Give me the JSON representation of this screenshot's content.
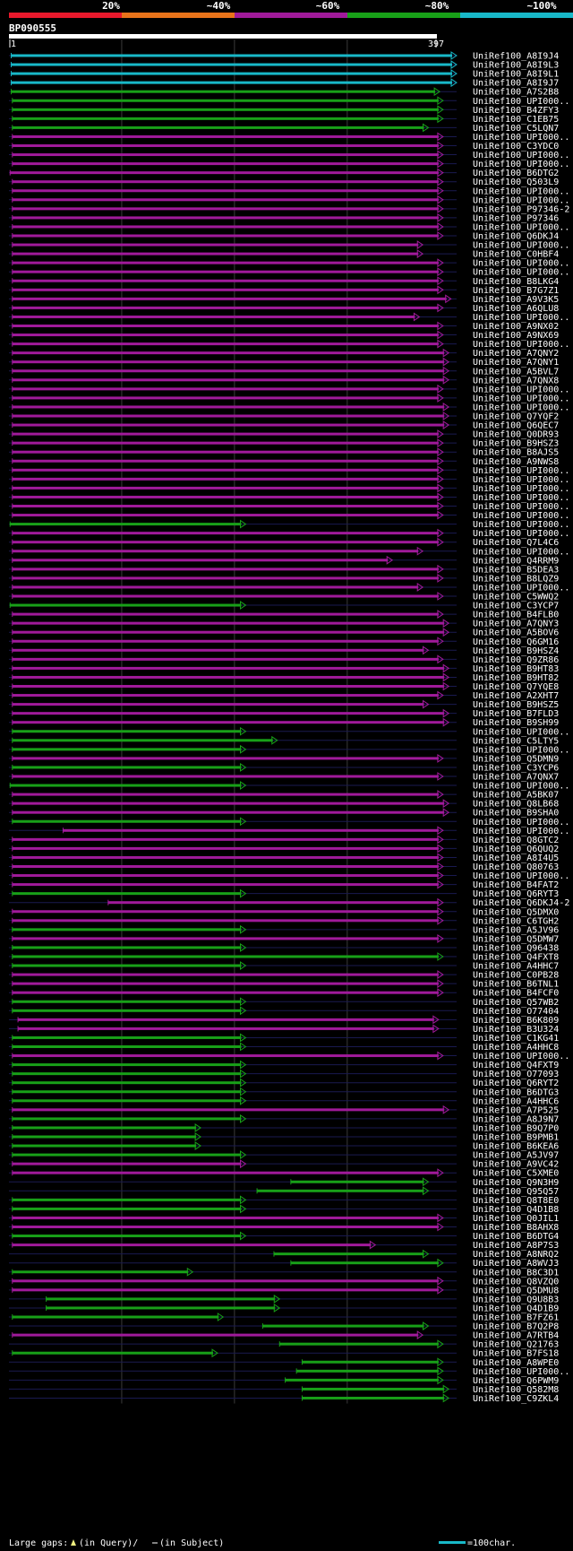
{
  "chart_data": {
    "type": "alignment-overview",
    "query": {
      "name": "BP090555",
      "start": 1,
      "end": 397
    },
    "color_scale": [
      {
        "label": "20%",
        "color": "#e8192c"
      },
      {
        "label": "~40%",
        "color": "#e8731a"
      },
      {
        "label": "~60%",
        "color": "#a01a9a"
      },
      {
        "label": "~80%",
        "color": "#18a018"
      },
      {
        "label": "~100%",
        "color": "#18b8c8"
      }
    ],
    "hits_shown": 150,
    "hits": [
      {
        "name": "UniRef100_A8I9J4",
        "start": 2,
        "end": 397,
        "color": "#18b8c8"
      },
      {
        "name": "UniRef100_A8I9L3",
        "start": 2,
        "end": 397,
        "color": "#18b8c8"
      },
      {
        "name": "UniRef100_A8I9L1",
        "start": 2,
        "end": 397,
        "color": "#18b8c8"
      },
      {
        "name": "UniRef100_A8I9J7",
        "start": 2,
        "end": 397,
        "color": "#18b8c8"
      },
      {
        "name": "UniRef100_A7S2B8",
        "start": 2,
        "end": 382,
        "color": "#18a018"
      },
      {
        "name": "UniRef100_UPI000..",
        "start": 3,
        "end": 385,
        "color": "#18a018"
      },
      {
        "name": "UniRef100_B4ZFY3",
        "start": 3,
        "end": 385,
        "color": "#18a018"
      },
      {
        "name": "UniRef100_C1EB75",
        "start": 3,
        "end": 385,
        "color": "#18a018"
      },
      {
        "name": "UniRef100_C5LQN7",
        "start": 3,
        "end": 372,
        "color": "#18a018"
      },
      {
        "name": "UniRef100_UPI000..",
        "start": 3,
        "end": 385,
        "color": "#a01a9a"
      },
      {
        "name": "UniRef100_C3YDC0",
        "start": 3,
        "end": 385,
        "color": "#a01a9a"
      },
      {
        "name": "UniRef100_UPI000..",
        "start": 3,
        "end": 385,
        "color": "#a01a9a"
      },
      {
        "name": "UniRef100_UPI000..",
        "start": 3,
        "end": 385,
        "color": "#a01a9a"
      },
      {
        "name": "UniRef100_B6DTG2",
        "start": 1,
        "end": 385,
        "color": "#a01a9a"
      },
      {
        "name": "UniRef100_Q503L9",
        "start": 3,
        "end": 385,
        "color": "#a01a9a"
      },
      {
        "name": "UniRef100_UPI000..",
        "start": 3,
        "end": 385,
        "color": "#a01a9a"
      },
      {
        "name": "UniRef100_UPI000..",
        "start": 3,
        "end": 385,
        "color": "#a01a9a"
      },
      {
        "name": "UniRef100_P97346-2",
        "start": 3,
        "end": 385,
        "color": "#a01a9a"
      },
      {
        "name": "UniRef100_P97346",
        "start": 3,
        "end": 385,
        "color": "#a01a9a"
      },
      {
        "name": "UniRef100_UPI000..",
        "start": 3,
        "end": 385,
        "color": "#a01a9a"
      },
      {
        "name": "UniRef100_Q6DKJ4",
        "start": 3,
        "end": 385,
        "color": "#a01a9a"
      },
      {
        "name": "UniRef100_UPI000..",
        "start": 3,
        "end": 367,
        "color": "#a01a9a"
      },
      {
        "name": "UniRef100_C0HBF4",
        "start": 3,
        "end": 367,
        "color": "#a01a9a"
      },
      {
        "name": "UniRef100_UPI000..",
        "start": 3,
        "end": 385,
        "color": "#a01a9a"
      },
      {
        "name": "UniRef100_UPI000..",
        "start": 3,
        "end": 385,
        "color": "#a01a9a"
      },
      {
        "name": "UniRef100_B8LKG4",
        "start": 3,
        "end": 385,
        "color": "#a01a9a"
      },
      {
        "name": "UniRef100_B7G7Z1",
        "start": 3,
        "end": 385,
        "color": "#a01a9a"
      },
      {
        "name": "UniRef100_A9V3K5",
        "start": 3,
        "end": 392,
        "color": "#a01a9a"
      },
      {
        "name": "UniRef100_A6QLU8",
        "start": 3,
        "end": 385,
        "color": "#a01a9a"
      },
      {
        "name": "UniRef100_UPI000..",
        "start": 3,
        "end": 364,
        "color": "#a01a9a"
      },
      {
        "name": "UniRef100_A9NX02",
        "start": 3,
        "end": 385,
        "color": "#a01a9a"
      },
      {
        "name": "UniRef100_A9NX69",
        "start": 3,
        "end": 385,
        "color": "#a01a9a"
      },
      {
        "name": "UniRef100_UPI000..",
        "start": 3,
        "end": 385,
        "color": "#a01a9a"
      },
      {
        "name": "UniRef100_A7QNY2",
        "start": 3,
        "end": 390,
        "color": "#a01a9a"
      },
      {
        "name": "UniRef100_A7QNY1",
        "start": 3,
        "end": 390,
        "color": "#a01a9a"
      },
      {
        "name": "UniRef100_A5BVL7",
        "start": 3,
        "end": 390,
        "color": "#a01a9a"
      },
      {
        "name": "UniRef100_A7QNX8",
        "start": 3,
        "end": 390,
        "color": "#a01a9a"
      },
      {
        "name": "UniRef100_UPI000..",
        "start": 3,
        "end": 385,
        "color": "#a01a9a"
      },
      {
        "name": "UniRef100_UPI000..",
        "start": 3,
        "end": 385,
        "color": "#a01a9a"
      },
      {
        "name": "UniRef100_UPI000..",
        "start": 3,
        "end": 390,
        "color": "#a01a9a"
      },
      {
        "name": "UniRef100_Q7YQF2",
        "start": 3,
        "end": 390,
        "color": "#a01a9a"
      },
      {
        "name": "UniRef100_Q6QEC7",
        "start": 3,
        "end": 390,
        "color": "#a01a9a"
      },
      {
        "name": "UniRef100_Q0DR93",
        "start": 3,
        "end": 385,
        "color": "#a01a9a"
      },
      {
        "name": "UniRef100_B9HSZ3",
        "start": 3,
        "end": 385,
        "color": "#a01a9a"
      },
      {
        "name": "UniRef100_B8AJS5",
        "start": 3,
        "end": 385,
        "color": "#a01a9a"
      },
      {
        "name": "UniRef100_A9NWS8",
        "start": 3,
        "end": 385,
        "color": "#a01a9a"
      },
      {
        "name": "UniRef100_UPI000..",
        "start": 3,
        "end": 385,
        "color": "#a01a9a"
      },
      {
        "name": "UniRef100_UPI000..",
        "start": 3,
        "end": 385,
        "color": "#a01a9a"
      },
      {
        "name": "UniRef100_UPI000..",
        "start": 3,
        "end": 385,
        "color": "#a01a9a"
      },
      {
        "name": "UniRef100_UPI000..",
        "start": 3,
        "end": 385,
        "color": "#a01a9a"
      },
      {
        "name": "UniRef100_UPI000..",
        "start": 3,
        "end": 385,
        "color": "#a01a9a"
      },
      {
        "name": "UniRef100_UPI000..",
        "start": 3,
        "end": 385,
        "color": "#a01a9a"
      },
      {
        "name": "UniRef100_UPI000..",
        "start": 1,
        "end": 210,
        "color": "#18a018"
      },
      {
        "name": "UniRef100_UPI000..",
        "start": 3,
        "end": 385,
        "color": "#a01a9a"
      },
      {
        "name": "UniRef100_Q7L4C6",
        "start": 3,
        "end": 385,
        "color": "#a01a9a"
      },
      {
        "name": "UniRef100_UPI000..",
        "start": 3,
        "end": 367,
        "color": "#a01a9a"
      },
      {
        "name": "UniRef100_Q4RRM9",
        "start": 3,
        "end": 340,
        "color": "#a01a9a"
      },
      {
        "name": "UniRef100_B5DEA3",
        "start": 3,
        "end": 385,
        "color": "#a01a9a"
      },
      {
        "name": "UniRef100_B8LQZ9",
        "start": 3,
        "end": 385,
        "color": "#a01a9a"
      },
      {
        "name": "UniRef100_UPI000..",
        "start": 3,
        "end": 367,
        "color": "#a01a9a"
      },
      {
        "name": "UniRef100_C5WWQ2",
        "start": 3,
        "end": 385,
        "color": "#a01a9a"
      },
      {
        "name": "UniRef100_C3YCP7",
        "start": 1,
        "end": 210,
        "color": "#18a018"
      },
      {
        "name": "UniRef100_B4FLB0",
        "start": 3,
        "end": 385,
        "color": "#a01a9a"
      },
      {
        "name": "UniRef100_A7QNY3",
        "start": 3,
        "end": 390,
        "color": "#a01a9a"
      },
      {
        "name": "UniRef100_A5BOV6",
        "start": 3,
        "end": 390,
        "color": "#a01a9a"
      },
      {
        "name": "UniRef100_Q6GM16",
        "start": 3,
        "end": 385,
        "color": "#a01a9a"
      },
      {
        "name": "UniRef100_B9HSZ4",
        "start": 3,
        "end": 372,
        "color": "#a01a9a"
      },
      {
        "name": "UniRef100_Q9ZR86",
        "start": 3,
        "end": 385,
        "color": "#a01a9a"
      },
      {
        "name": "UniRef100_B9HT83",
        "start": 3,
        "end": 390,
        "color": "#a01a9a"
      },
      {
        "name": "UniRef100_B9HT82",
        "start": 3,
        "end": 390,
        "color": "#a01a9a"
      },
      {
        "name": "UniRef100_Q7YQE8",
        "start": 3,
        "end": 390,
        "color": "#a01a9a"
      },
      {
        "name": "UniRef100_A2XHT7",
        "start": 3,
        "end": 385,
        "color": "#a01a9a"
      },
      {
        "name": "UniRef100_B9HSZ5",
        "start": 3,
        "end": 372,
        "color": "#a01a9a"
      },
      {
        "name": "UniRef100_B7FLD3",
        "start": 3,
        "end": 390,
        "color": "#a01a9a"
      },
      {
        "name": "UniRef100_B9SH99",
        "start": 3,
        "end": 390,
        "color": "#a01a9a"
      },
      {
        "name": "UniRef100_UPI000..",
        "start": 3,
        "end": 210,
        "color": "#18a018"
      },
      {
        "name": "UniRef100_C5LTY5",
        "start": 3,
        "end": 238,
        "color": "#18a018"
      },
      {
        "name": "UniRef100_UPI000..",
        "start": 3,
        "end": 210,
        "color": "#18a018"
      },
      {
        "name": "UniRef100_Q5DMN9",
        "start": 3,
        "end": 385,
        "color": "#a01a9a"
      },
      {
        "name": "UniRef100_C3YCP6",
        "start": 3,
        "end": 210,
        "color": "#18a018"
      },
      {
        "name": "UniRef100_A7QNX7",
        "start": 3,
        "end": 385,
        "color": "#a01a9a"
      },
      {
        "name": "UniRef100_UPI000..",
        "start": 1,
        "end": 210,
        "color": "#18a018"
      },
      {
        "name": "UniRef100_A5BK07",
        "start": 3,
        "end": 385,
        "color": "#a01a9a"
      },
      {
        "name": "UniRef100_Q8LB68",
        "start": 3,
        "end": 390,
        "color": "#a01a9a"
      },
      {
        "name": "UniRef100_B9SHA0",
        "start": 3,
        "end": 390,
        "color": "#a01a9a"
      },
      {
        "name": "UniRef100_UPI000..",
        "start": 3,
        "end": 210,
        "color": "#18a018"
      },
      {
        "name": "UniRef100_UPI000..",
        "start": 48,
        "end": 385,
        "color": "#a01a9a"
      },
      {
        "name": "UniRef100_Q8GTC2",
        "start": 3,
        "end": 385,
        "color": "#a01a9a"
      },
      {
        "name": "UniRef100_Q6QUQ2",
        "start": 3,
        "end": 385,
        "color": "#a01a9a"
      },
      {
        "name": "UniRef100_A8I4U5",
        "start": 3,
        "end": 385,
        "color": "#a01a9a"
      },
      {
        "name": "UniRef100_Q80763",
        "start": 3,
        "end": 385,
        "color": "#a01a9a"
      },
      {
        "name": "UniRef100_UPI000..",
        "start": 3,
        "end": 385,
        "color": "#a01a9a"
      },
      {
        "name": "UniRef100_B4FAT2",
        "start": 3,
        "end": 385,
        "color": "#a01a9a"
      },
      {
        "name": "UniRef100_Q6RYT3",
        "start": 3,
        "end": 210,
        "color": "#18a018"
      },
      {
        "name": "UniRef100_Q6DKJ4-2",
        "start": 88,
        "end": 385,
        "color": "#a01a9a"
      },
      {
        "name": "UniRef100_Q5DMX0",
        "start": 3,
        "end": 385,
        "color": "#a01a9a"
      },
      {
        "name": "UniRef100_C6TGH2",
        "start": 3,
        "end": 385,
        "color": "#a01a9a"
      },
      {
        "name": "UniRef100_A5JV96",
        "start": 3,
        "end": 210,
        "color": "#18a018"
      },
      {
        "name": "UniRef100_Q5DMW7",
        "start": 3,
        "end": 385,
        "color": "#a01a9a"
      },
      {
        "name": "UniRef100_Q96438",
        "start": 3,
        "end": 210,
        "color": "#18a018"
      },
      {
        "name": "UniRef100_Q4FXT8",
        "start": 3,
        "end": 385,
        "color": "#18a018"
      },
      {
        "name": "UniRef100_A4HHC7",
        "start": 3,
        "end": 210,
        "color": "#18a018"
      },
      {
        "name": "UniRef100_C0PB28",
        "start": 3,
        "end": 385,
        "color": "#a01a9a"
      },
      {
        "name": "UniRef100_B6TNL1",
        "start": 3,
        "end": 385,
        "color": "#a01a9a"
      },
      {
        "name": "UniRef100_B4FCF0",
        "start": 3,
        "end": 385,
        "color": "#a01a9a"
      },
      {
        "name": "UniRef100_Q57WB2",
        "start": 3,
        "end": 210,
        "color": "#18a018"
      },
      {
        "name": "UniRef100_O77404",
        "start": 3,
        "end": 210,
        "color": "#18a018"
      },
      {
        "name": "UniRef100_B6K809",
        "start": 8,
        "end": 381,
        "color": "#a01a9a"
      },
      {
        "name": "UniRef100_B3U324",
        "start": 8,
        "end": 381,
        "color": "#a01a9a"
      },
      {
        "name": "UniRef100_C1KG41",
        "start": 3,
        "end": 210,
        "color": "#18a018"
      },
      {
        "name": "UniRef100_A4HHC8",
        "start": 3,
        "end": 210,
        "color": "#18a018"
      },
      {
        "name": "UniRef100_UPI000..",
        "start": 3,
        "end": 385,
        "color": "#a01a9a"
      },
      {
        "name": "UniRef100_Q4FXT9",
        "start": 3,
        "end": 210,
        "color": "#18a018"
      },
      {
        "name": "UniRef100_O77093",
        "start": 3,
        "end": 210,
        "color": "#18a018"
      },
      {
        "name": "UniRef100_Q6RYT2",
        "start": 3,
        "end": 210,
        "color": "#18a018"
      },
      {
        "name": "UniRef100_B6DTG3",
        "start": 3,
        "end": 210,
        "color": "#18a018"
      },
      {
        "name": "UniRef100_A4HHC6",
        "start": 3,
        "end": 210,
        "color": "#18a018"
      },
      {
        "name": "UniRef100_A7P525",
        "start": 3,
        "end": 390,
        "color": "#a01a9a"
      },
      {
        "name": "UniRef100_A8J9N7",
        "start": 3,
        "end": 210,
        "color": "#18a018"
      },
      {
        "name": "UniRef100_B9Q7P0",
        "start": 3,
        "end": 170,
        "color": "#18a018"
      },
      {
        "name": "UniRef100_B9PMB1",
        "start": 3,
        "end": 170,
        "color": "#18a018"
      },
      {
        "name": "UniRef100_B6KEA6",
        "start": 3,
        "end": 170,
        "color": "#18a018"
      },
      {
        "name": "UniRef100_A5JV97",
        "start": 3,
        "end": 210,
        "color": "#18a018"
      },
      {
        "name": "UniRef100_A9VC42",
        "start": 3,
        "end": 210,
        "color": "#a01a9a"
      },
      {
        "name": "UniRef100_C5XME0",
        "start": 3,
        "end": 385,
        "color": "#a01a9a"
      },
      {
        "name": "UniRef100_Q9N3H9",
        "start": 250,
        "end": 372,
        "color": "#18a018"
      },
      {
        "name": "UniRef100_Q95Q57",
        "start": 220,
        "end": 372,
        "color": "#18a018"
      },
      {
        "name": "UniRef100_Q8T8E0",
        "start": 3,
        "end": 210,
        "color": "#18a018"
      },
      {
        "name": "UniRef100_Q4D1B8",
        "start": 3,
        "end": 210,
        "color": "#18a018"
      },
      {
        "name": "UniRef100_Q0JIL1",
        "start": 3,
        "end": 385,
        "color": "#a01a9a"
      },
      {
        "name": "UniRef100_B8AHX8",
        "start": 3,
        "end": 385,
        "color": "#a01a9a"
      },
      {
        "name": "UniRef100_B6DTG4",
        "start": 3,
        "end": 210,
        "color": "#18a018"
      },
      {
        "name": "UniRef100_A8P7S3",
        "start": 3,
        "end": 325,
        "color": "#a01a9a"
      },
      {
        "name": "UniRef100_A8NRQ2",
        "start": 235,
        "end": 372,
        "color": "#18a018"
      },
      {
        "name": "UniRef100_A8WVJ3",
        "start": 250,
        "end": 385,
        "color": "#18a018"
      },
      {
        "name": "UniRef100_B8C3D1",
        "start": 3,
        "end": 163,
        "color": "#18a018"
      },
      {
        "name": "UniRef100_Q8VZQ0",
        "start": 3,
        "end": 385,
        "color": "#a01a9a"
      },
      {
        "name": "UniRef100_Q5DMU8",
        "start": 3,
        "end": 385,
        "color": "#a01a9a"
      },
      {
        "name": "UniRef100_Q9U8B3",
        "start": 33,
        "end": 240,
        "color": "#18a018"
      },
      {
        "name": "UniRef100_Q4D1B9",
        "start": 33,
        "end": 240,
        "color": "#18a018"
      },
      {
        "name": "UniRef100_B7FZ61",
        "start": 3,
        "end": 190,
        "color": "#18a018"
      },
      {
        "name": "UniRef100_B7Q2P8",
        "start": 225,
        "end": 372,
        "color": "#18a018"
      },
      {
        "name": "UniRef100_A7RTB4",
        "start": 3,
        "end": 367,
        "color": "#a01a9a"
      },
      {
        "name": "UniRef100_Q21763",
        "start": 240,
        "end": 385,
        "color": "#18a018"
      },
      {
        "name": "UniRef100_B7FS18",
        "start": 3,
        "end": 185,
        "color": "#18a018"
      },
      {
        "name": "UniRef100_A8WPE0",
        "start": 260,
        "end": 385,
        "color": "#18a018"
      },
      {
        "name": "UniRef100_UPI000..",
        "start": 255,
        "end": 385,
        "color": "#18a018"
      },
      {
        "name": "UniRef100_Q6PWM9",
        "start": 245,
        "end": 385,
        "color": "#18a018"
      },
      {
        "name": "UniRef100_Q582M8",
        "start": 260,
        "end": 390,
        "color": "#18a018"
      },
      {
        "name": "UniRef100_C9ZKL4",
        "start": 260,
        "end": 390,
        "color": "#18a018"
      }
    ],
    "legend": {
      "gaps_label": "Large gaps:",
      "gap_query": "(in Query)/",
      "gap_subject": "(in Subject)",
      "scale_label": "=100char."
    },
    "colors": {
      "background": "#000000",
      "grid": "#3a3a3a",
      "gap_marker": "#f0f080",
      "scale_bar": "#18b8c8"
    }
  }
}
